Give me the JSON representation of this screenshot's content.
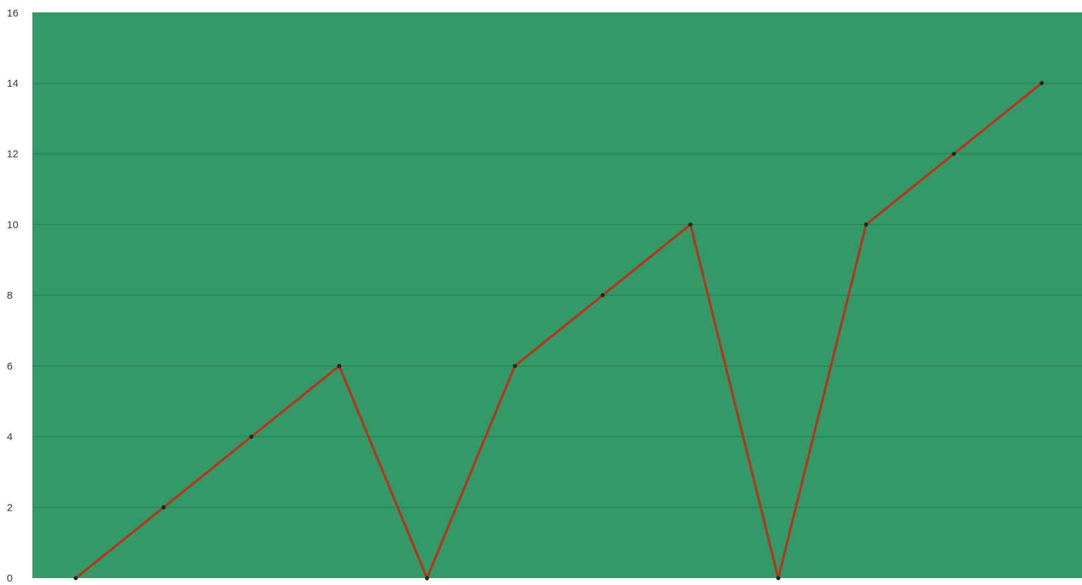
{
  "chart_data": {
    "type": "line",
    "title": "",
    "xlabel": "",
    "ylabel": "",
    "x": [
      0,
      1,
      2,
      3,
      4,
      5,
      6,
      7,
      8,
      9,
      10,
      11
    ],
    "series": [
      {
        "values": [
          0,
          2,
          4,
          6,
          0,
          6,
          8,
          10,
          0,
          10,
          12,
          14
        ],
        "color": "#b5361f"
      }
    ],
    "ylim": [
      0,
      16
    ],
    "yticks": [
      "0",
      "2",
      "4",
      "6",
      "8",
      "10",
      "12",
      "14",
      "16"
    ],
    "grid": true,
    "legend": "none",
    "colors": {
      "plot_background": "#339966",
      "gridline": "#2b8557",
      "marker": "#1b2a22",
      "tick_label": "#333333"
    }
  }
}
